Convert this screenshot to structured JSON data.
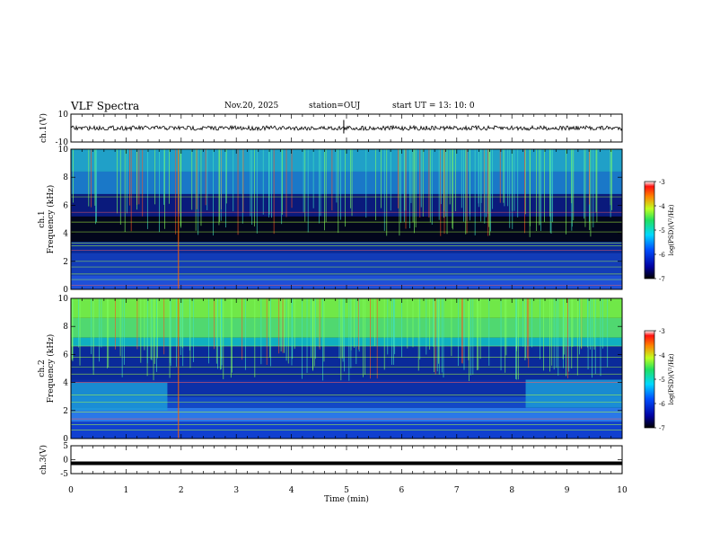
{
  "header": {
    "title": "VLF Spectra",
    "date": "Nov.20, 2025",
    "station": "station=OUJ",
    "start": "start  UT =   13: 10: 0"
  },
  "chart_data": {
    "type": "heatmap",
    "title": "VLF Spectra",
    "xlabel": "Time  (min)",
    "xlim": [
      0,
      10
    ],
    "x_ticks": [
      "0",
      "1",
      "2",
      "3",
      "4",
      "5",
      "6",
      "7",
      "8",
      "9",
      "10"
    ],
    "panels": [
      {
        "id": "ch1v",
        "kind": "waveform",
        "ylabel": "ch.1(V)",
        "ylim": [
          -10,
          10
        ],
        "y_ticks": [
          "10",
          "-10"
        ]
      },
      {
        "id": "ch1",
        "kind": "spectrogram",
        "ylabel_top": "ch.1",
        "ylabel": "Frequency  (kHz)",
        "ylim": [
          0,
          10
        ],
        "y_ticks": [
          "0",
          "2",
          "4",
          "6",
          "8",
          "10"
        ]
      },
      {
        "id": "ch2",
        "kind": "spectrogram",
        "ylabel_top": "ch.2",
        "ylabel": "Frequency  (kHz)",
        "ylim": [
          0,
          10
        ],
        "y_ticks": [
          "0",
          "2",
          "4",
          "6",
          "8",
          "10"
        ]
      },
      {
        "id": "ch3v",
        "kind": "waveform",
        "ylabel": "ch.3(V)",
        "ylim": [
          -5,
          5
        ],
        "y_ticks": [
          "5",
          "0",
          "-5"
        ]
      }
    ],
    "colorbar": {
      "label": "log(PSD)(V²/Hz)",
      "range": [
        -7,
        -3
      ],
      "ticks": [
        "-3",
        "-4",
        "-5",
        "-6",
        "-7"
      ]
    },
    "colors": {
      "background": "#000030",
      "low": "#0a1a8c",
      "mid": "#00c8ff",
      "high": "#80ff40",
      "peak": "#ff2000"
    }
  }
}
